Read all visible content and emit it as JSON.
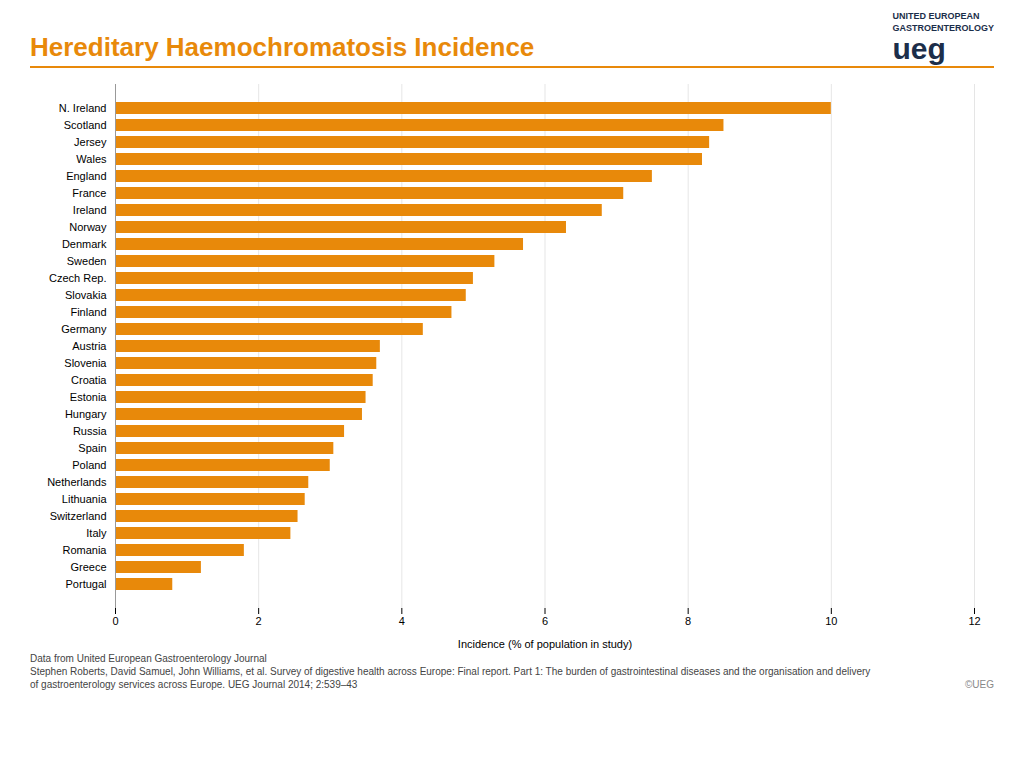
{
  "chart_data": {
    "type": "bar",
    "orientation": "horizontal",
    "title": "Hereditary Haemochromatosis Incidence",
    "xlabel": "Incidence (% of population in study)",
    "categories": [
      "N. Ireland",
      "Scotland",
      "Jersey",
      "Wales",
      "England",
      "France",
      "Ireland",
      "Norway",
      "Denmark",
      "Sweden",
      "Czech Rep.",
      "Slovakia",
      "Finland",
      "Germany",
      "Austria",
      "Slovenia",
      "Croatia",
      "Estonia",
      "Hungary",
      "Russia",
      "Spain",
      "Poland",
      "Netherlands",
      "Lithuania",
      "Switzerland",
      "Italy",
      "Romania",
      "Greece",
      "Portugal"
    ],
    "values": [
      10.0,
      8.5,
      8.3,
      8.2,
      7.5,
      7.1,
      6.8,
      6.3,
      5.7,
      5.3,
      5.0,
      4.9,
      4.7,
      4.3,
      3.7,
      3.65,
      3.6,
      3.5,
      3.45,
      3.2,
      3.05,
      3.0,
      2.7,
      2.65,
      2.55,
      2.45,
      1.8,
      1.2,
      0.8
    ],
    "color": "#E8890A",
    "xlim": [
      0,
      12
    ],
    "xticks": [
      0,
      2,
      4,
      6,
      8,
      10,
      12
    ],
    "grid": true,
    "annotations": [
      "UNITED EUROPEAN",
      "GASTROENTEROLOGY",
      "ueg",
      "Data from United European Gastroenterology Journal",
      "Stephen Roberts, David Samuel, John Williams, et al. Survey of digestive health across Europe: Final report. Part 1: The burden of gastrointestinal diseases and the organisation and delivery",
      "of gastroenterology services across Europe. UEG Journal 2014; 2:539–43",
      "©UEG"
    ]
  }
}
